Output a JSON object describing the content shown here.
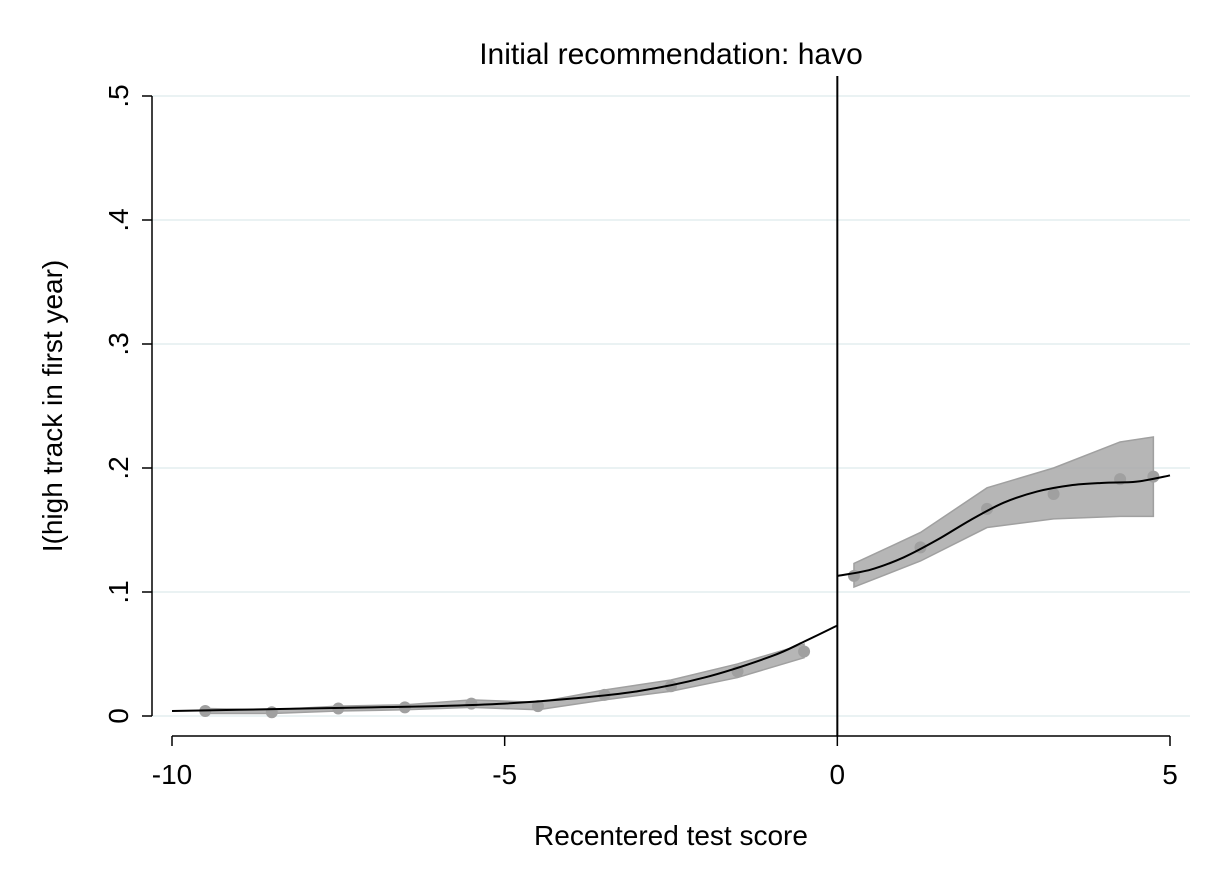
{
  "chart_data": {
    "type": "scatter",
    "title": "Initial recommendation: havo",
    "xlabel": "Recentered test score",
    "ylabel": "I(high track in first year)",
    "xlim": [
      -10,
      5
    ],
    "ylim": [
      0,
      0.5
    ],
    "x_ticks": [
      {
        "value": -10,
        "label": "-10"
      },
      {
        "value": -5,
        "label": "-5"
      },
      {
        "value": 0,
        "label": "0"
      },
      {
        "value": 5,
        "label": "5"
      }
    ],
    "y_ticks": [
      {
        "value": 0,
        "label": "0"
      },
      {
        "value": 0.1,
        "label": ".1"
      },
      {
        "value": 0.2,
        "label": ".2"
      },
      {
        "value": 0.3,
        "label": ".3"
      },
      {
        "value": 0.4,
        "label": ".4"
      },
      {
        "value": 0.5,
        "label": ".5"
      }
    ],
    "grid": true,
    "cutoff": 0,
    "colors": {
      "points": "#a0a0a0",
      "ci_band": "#a9a9a9",
      "fit": "#000000",
      "grid": "#eaf2f3"
    },
    "bins": [
      {
        "x": -9.5,
        "y": 0.004
      },
      {
        "x": -8.5,
        "y": 0.003
      },
      {
        "x": -7.5,
        "y": 0.006
      },
      {
        "x": -6.5,
        "y": 0.007
      },
      {
        "x": -5.5,
        "y": 0.01
      },
      {
        "x": -4.5,
        "y": 0.008
      },
      {
        "x": -3.5,
        "y": 0.017
      },
      {
        "x": -2.5,
        "y": 0.024
      },
      {
        "x": -1.5,
        "y": 0.036
      },
      {
        "x": -0.5,
        "y": 0.052
      },
      {
        "x": 0.25,
        "y": 0.113
      },
      {
        "x": 1.25,
        "y": 0.136
      },
      {
        "x": 2.25,
        "y": 0.167
      },
      {
        "x": 3.25,
        "y": 0.179
      },
      {
        "x": 4.25,
        "y": 0.191
      },
      {
        "x": 4.75,
        "y": 0.193
      }
    ],
    "ci_left": [
      {
        "x": -9.5,
        "lo": 0.002,
        "hi": 0.006
      },
      {
        "x": -8.5,
        "lo": 0.002,
        "hi": 0.005
      },
      {
        "x": -7.5,
        "lo": 0.004,
        "hi": 0.008
      },
      {
        "x": -6.5,
        "lo": 0.005,
        "hi": 0.009
      },
      {
        "x": -5.5,
        "lo": 0.007,
        "hi": 0.013
      },
      {
        "x": -4.5,
        "lo": 0.005,
        "hi": 0.011
      },
      {
        "x": -3.5,
        "lo": 0.013,
        "hi": 0.021
      },
      {
        "x": -2.5,
        "lo": 0.02,
        "hi": 0.029
      },
      {
        "x": -1.5,
        "lo": 0.031,
        "hi": 0.042
      },
      {
        "x": -0.5,
        "lo": 0.047,
        "hi": 0.058
      }
    ],
    "ci_right": [
      {
        "x": 0.25,
        "lo": 0.104,
        "hi": 0.123
      },
      {
        "x": 1.25,
        "lo": 0.125,
        "hi": 0.148
      },
      {
        "x": 2.25,
        "lo": 0.152,
        "hi": 0.184
      },
      {
        "x": 3.25,
        "lo": 0.159,
        "hi": 0.2
      },
      {
        "x": 4.25,
        "lo": 0.161,
        "hi": 0.221
      },
      {
        "x": 4.75,
        "lo": 0.161,
        "hi": 0.225
      }
    ],
    "fit_left": [
      {
        "x": -10,
        "y": 0.004
      },
      {
        "x": -9,
        "y": 0.005
      },
      {
        "x": -8,
        "y": 0.006
      },
      {
        "x": -7,
        "y": 0.007
      },
      {
        "x": -6,
        "y": 0.008
      },
      {
        "x": -5,
        "y": 0.01
      },
      {
        "x": -4,
        "y": 0.014
      },
      {
        "x": -3,
        "y": 0.02
      },
      {
        "x": -2,
        "y": 0.031
      },
      {
        "x": -1,
        "y": 0.048
      },
      {
        "x": -0.5,
        "y": 0.06
      },
      {
        "x": 0,
        "y": 0.073
      }
    ],
    "fit_right": [
      {
        "x": 0,
        "y": 0.113
      },
      {
        "x": 0.5,
        "y": 0.118
      },
      {
        "x": 1,
        "y": 0.128
      },
      {
        "x": 1.5,
        "y": 0.142
      },
      {
        "x": 2,
        "y": 0.158
      },
      {
        "x": 2.5,
        "y": 0.172
      },
      {
        "x": 3,
        "y": 0.181
      },
      {
        "x": 3.5,
        "y": 0.186
      },
      {
        "x": 4,
        "y": 0.188
      },
      {
        "x": 4.5,
        "y": 0.189
      },
      {
        "x": 5,
        "y": 0.194
      }
    ]
  }
}
